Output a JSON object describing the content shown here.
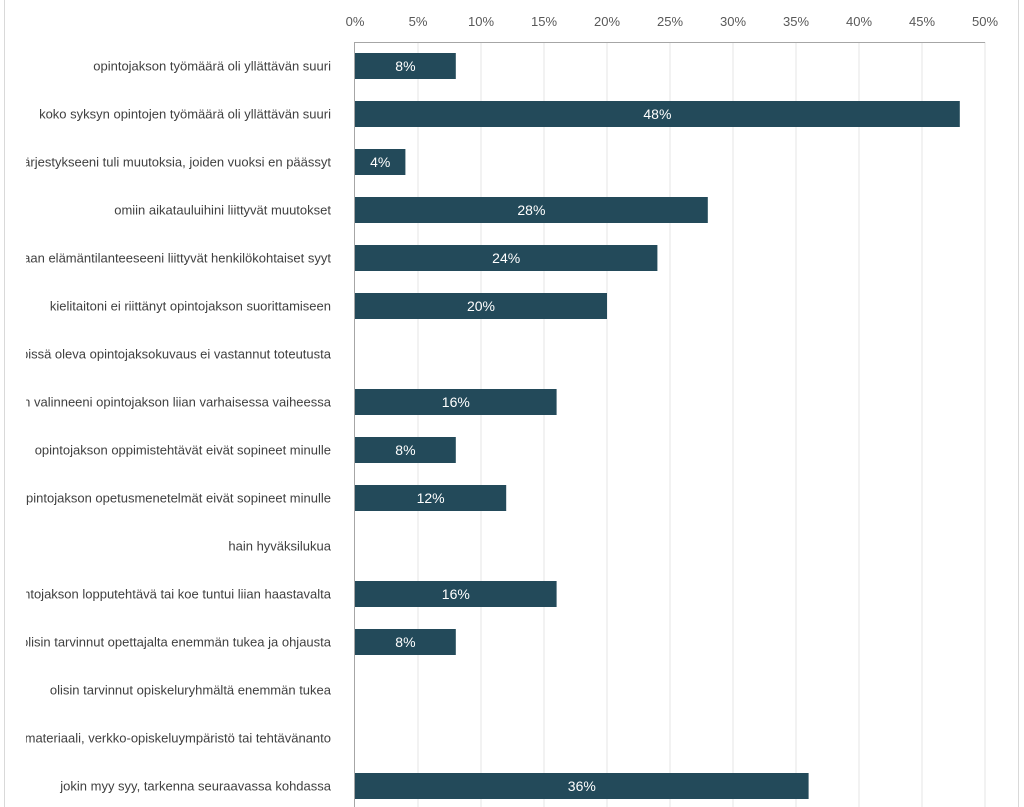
{
  "chart_data": {
    "type": "bar",
    "orientation": "horizontal",
    "categories": [
      "opintojakson työmäärä oli yllättävän suuri",
      "koko syksyn opintojen työmäärä oli yllättävän suuri",
      "lukujärjestykseeni tuli muutoksia, joiden vuoksi en päässyt",
      "omiin aikatauluihini liittyvät muutokset",
      "omaan elämäntilanteeseeni liittyvät henkilökohtaiset syyt",
      "kielitaitoni ei riittänyt opintojakson suorittamiseen",
      "Pepissä oleva opintojaksokuvaus ei vastannut toteutusta",
      "koin valinneeni opintojakson liian varhaisessa vaiheessa",
      "opintojakson oppimistehtävät eivät sopineet minulle",
      "opintojakson opetusmenetelmät eivät sopineet minulle",
      "hain hyväksilukua",
      "opintojakson lopputehtävä tai koe tuntui liian haastavalta",
      "olisin tarvinnut opettajalta enemmän tukea ja ohjausta",
      "olisin tarvinnut opiskeluryhmältä enemmän tukea",
      "oppimateriaali, verkko-opiskeluympäristö tai tehtävänanto",
      "jokin myy syy, tarkenna seuraavassa kohdassa"
    ],
    "values": [
      8,
      48,
      4,
      28,
      24,
      20,
      0,
      16,
      8,
      12,
      0,
      16,
      8,
      0,
      0,
      36
    ],
    "data_labels": [
      "8%",
      "48%",
      "4%",
      "28%",
      "24%",
      "20%",
      "",
      "16%",
      "8%",
      "12%",
      "",
      "16%",
      "8%",
      "",
      "",
      "36%"
    ],
    "xlim": [
      0,
      50
    ],
    "x_ticks": [
      "0%",
      "5%",
      "10%",
      "15%",
      "20%",
      "25%",
      "30%",
      "35%",
      "40%",
      "45%",
      "50%"
    ],
    "axis_position": "top",
    "grid": true,
    "bar_color": "#234A5A",
    "title": "",
    "xlabel": "",
    "ylabel": ""
  }
}
